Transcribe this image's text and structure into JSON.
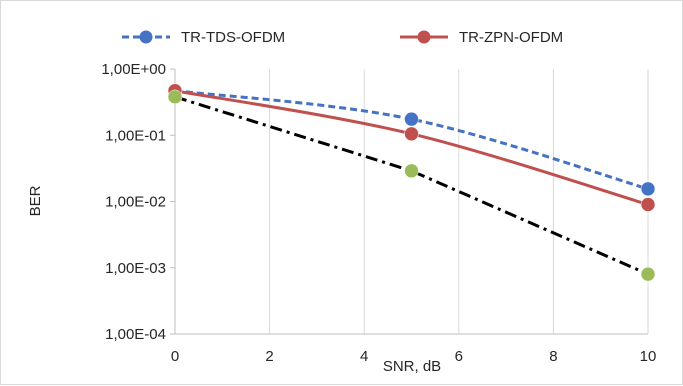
{
  "chart_data": {
    "type": "line",
    "title": "",
    "xlabel": "SNR, dB",
    "ylabel": "BER",
    "xlim": [
      0,
      10
    ],
    "ylim": [
      0.0001,
      1
    ],
    "y_scale": "log",
    "x_ticks": [
      0,
      2,
      4,
      6,
      8,
      10
    ],
    "x_tick_labels": [
      "0",
      "2",
      "4",
      "6",
      "8",
      "10"
    ],
    "y_ticks": [
      1,
      0.1,
      0.01,
      0.001,
      0.0001
    ],
    "y_tick_labels": [
      "1,00E+00",
      "1,00E-01",
      "1,00E-02",
      "1,00E-03",
      "1,00E-04"
    ],
    "grid": "vertical",
    "legend_position": "top",
    "series": [
      {
        "name": "TR-TDS-OFDM",
        "color": "#4472c4",
        "marker_color": "#4472c4",
        "line_style": "dashed",
        "x": [
          0,
          5,
          10
        ],
        "values": [
          0.47,
          0.175,
          0.0155
        ]
      },
      {
        "name": "TR-ZPN-OFDM",
        "color": "#c0504d",
        "marker_color": "#c0504d",
        "line_style": "solid",
        "x": [
          0,
          5,
          10
        ],
        "values": [
          0.47,
          0.105,
          0.009
        ]
      },
      {
        "name": "",
        "color": "#000000",
        "marker_color": "#9bbb59",
        "line_style": "dash-dot",
        "x": [
          0,
          5,
          10
        ],
        "values": [
          0.38,
          0.029,
          0.0008
        ]
      }
    ]
  }
}
